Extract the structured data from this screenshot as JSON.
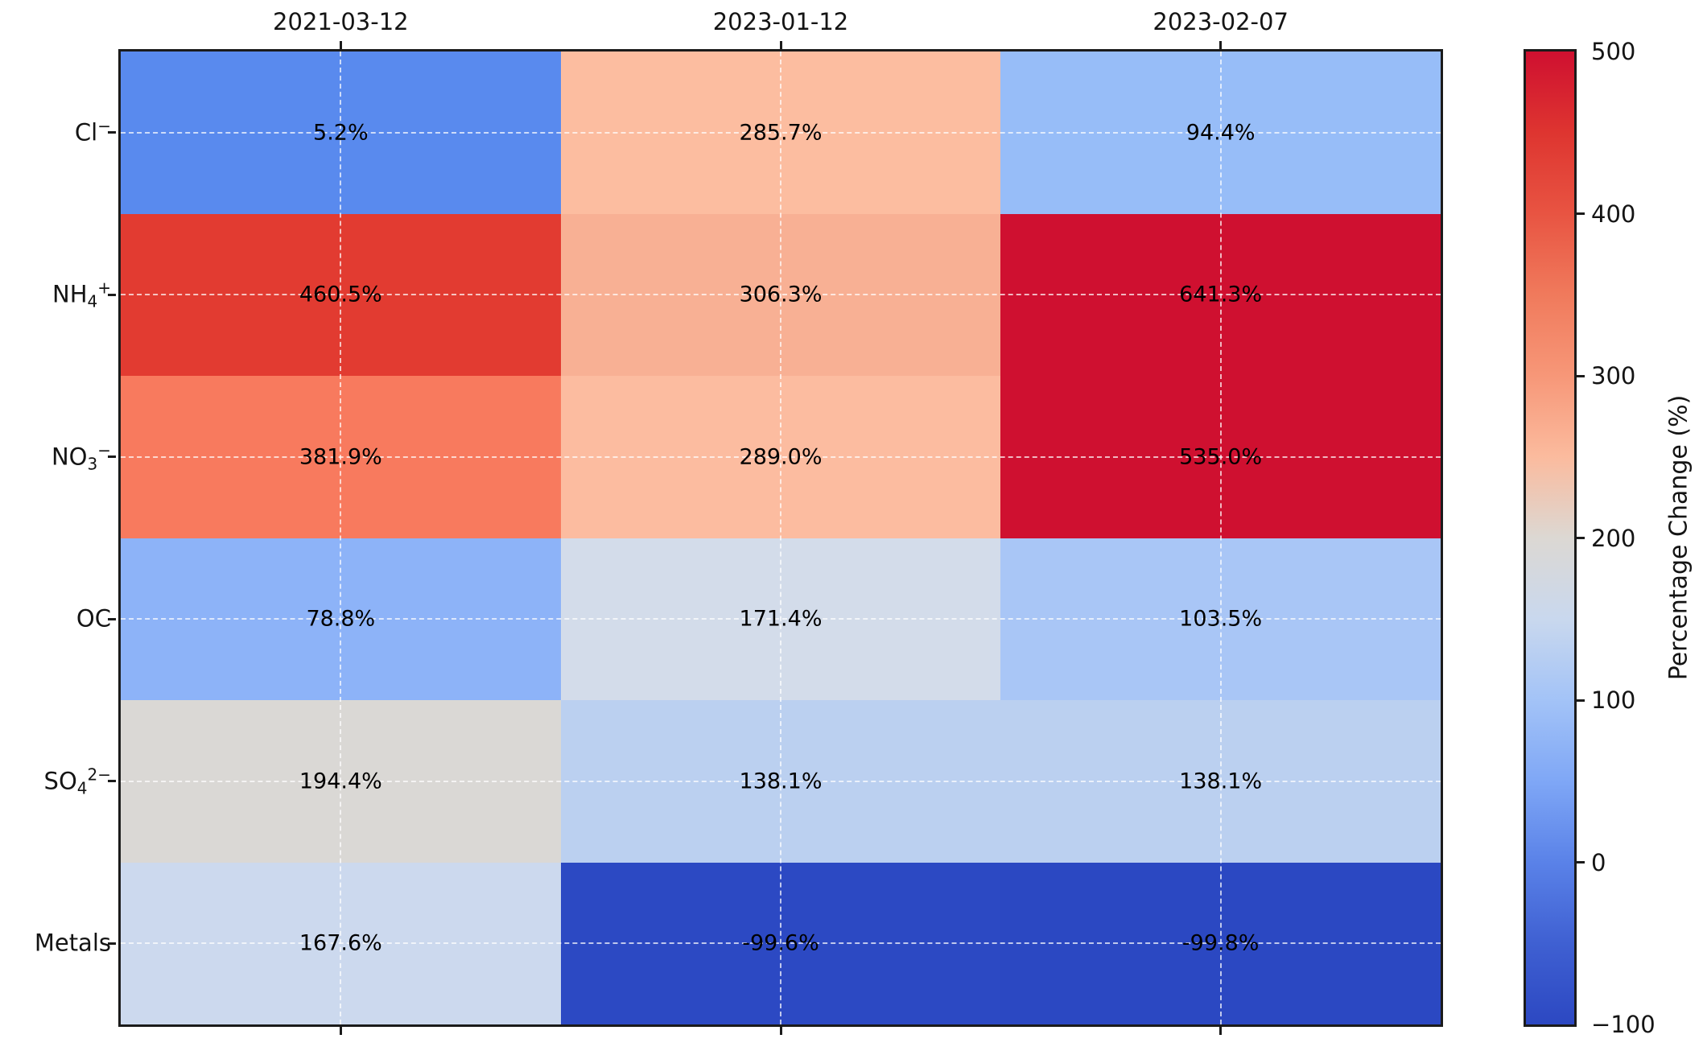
{
  "chart_data": {
    "type": "heatmap",
    "title": "",
    "x_axis_position": "top",
    "grid": {
      "visible": true,
      "style": "dashed"
    },
    "columns": [
      "2021-03-12",
      "2023-01-12",
      "2023-02-07"
    ],
    "rows": [
      {
        "label": "Cl−",
        "base": "Cl",
        "sub": "",
        "sup": "−"
      },
      {
        "label": "NH4+",
        "base": "NH",
        "sub": "4",
        "sup": "+"
      },
      {
        "label": "NO3−",
        "base": "NO",
        "sub": "3",
        "sup": "−"
      },
      {
        "label": "OC",
        "base": "OC",
        "sub": "",
        "sup": ""
      },
      {
        "label": "SO42−",
        "base": "SO",
        "sub": "4",
        "sup": "2−"
      },
      {
        "label": "Metals",
        "base": "Metals",
        "sub": "",
        "sup": ""
      }
    ],
    "values": [
      [
        5.2,
        285.7,
        94.4
      ],
      [
        460.5,
        306.3,
        641.3
      ],
      [
        381.9,
        289.0,
        535.0
      ],
      [
        78.8,
        171.4,
        103.5
      ],
      [
        194.4,
        138.1,
        138.1
      ],
      [
        167.6,
        -99.6,
        -99.8
      ]
    ],
    "value_labels": [
      [
        "5.2%",
        "285.7%",
        "94.4%"
      ],
      [
        "460.5%",
        "306.3%",
        "641.3%"
      ],
      [
        "381.9%",
        "289.0%",
        "535.0%"
      ],
      [
        "78.8%",
        "171.4%",
        "103.5%"
      ],
      [
        "194.4%",
        "138.1%",
        "138.1%"
      ],
      [
        "167.6%",
        "-99.6%",
        "-99.8%"
      ]
    ],
    "cell_colors": [
      [
        "#598aee",
        "#fcbda0",
        "#97bdf8"
      ],
      [
        "#e23b31",
        "#f8b094",
        "#cf1030"
      ],
      [
        "#f87a5e",
        "#fcbca0",
        "#cf1030"
      ],
      [
        "#8db3f8",
        "#d3dcea",
        "#a9c6f6"
      ],
      [
        "#dad8d5",
        "#bbd0f0",
        "#bbd0f0"
      ],
      [
        "#ccd9ee",
        "#2c49c3",
        "#2b48c2"
      ]
    ],
    "colorbar": {
      "label": "Percentage Change (%)",
      "vmin": -100,
      "vmax": 500,
      "ticks": [
        500,
        400,
        300,
        200,
        100,
        0,
        -100
      ],
      "tick_labels": [
        "500",
        "400",
        "300",
        "200",
        "100",
        "0",
        "−100"
      ],
      "gradient_stops": [
        {
          "v": 500,
          "color": "#cf1030"
        },
        {
          "v": 450,
          "color": "#de3530"
        },
        {
          "v": 400,
          "color": "#e85442"
        },
        {
          "v": 350,
          "color": "#f07a5c"
        },
        {
          "v": 300,
          "color": "#f79778"
        },
        {
          "v": 250,
          "color": "#fbbb9e"
        },
        {
          "v": 200,
          "color": "#dcd8d3"
        },
        {
          "v": 150,
          "color": "#c9d8ee"
        },
        {
          "v": 100,
          "color": "#a3c3f7"
        },
        {
          "v": 50,
          "color": "#7fa7f6"
        },
        {
          "v": 0,
          "color": "#5a82e8"
        },
        {
          "v": -50,
          "color": "#3f60d2"
        },
        {
          "v": -100,
          "color": "#2c48c2"
        }
      ]
    },
    "text_color": "#111111"
  }
}
